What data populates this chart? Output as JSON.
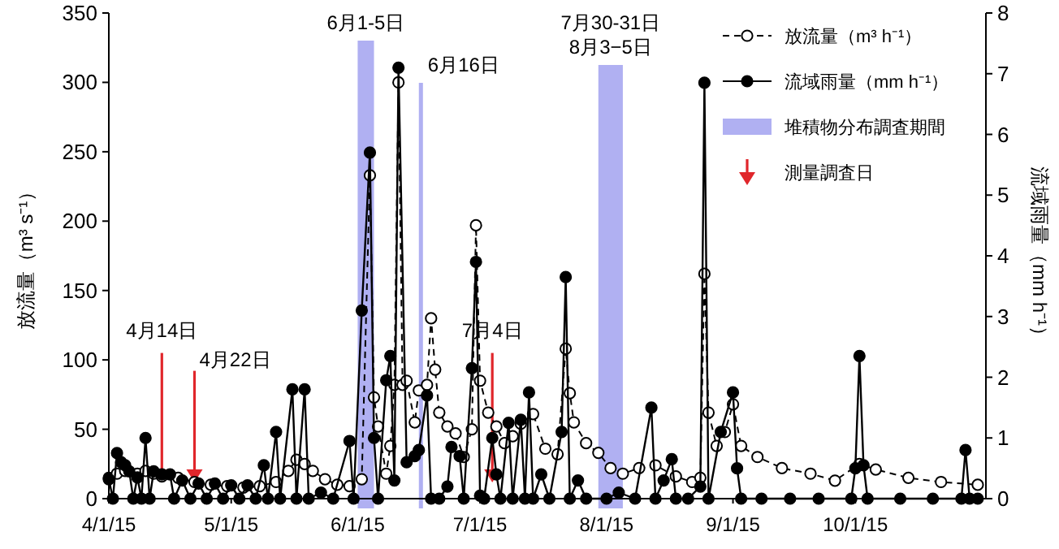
{
  "chart_data": {
    "type": "line",
    "ylabel": "放流量（m³ s⁻¹）",
    "y2label": "流域雨量（mm h⁻¹）",
    "xlim": [
      "2015-04-01",
      "2015-11-02"
    ],
    "xticks": [
      {
        "value": "2015-04-01",
        "label": "4/1/15"
      },
      {
        "value": "2015-05-01",
        "label": "5/1/15"
      },
      {
        "value": "2015-06-01",
        "label": "6/1/15"
      },
      {
        "value": "2015-07-01",
        "label": "7/1/15"
      },
      {
        "value": "2015-08-01",
        "label": "8/1/15"
      },
      {
        "value": "2015-09-01",
        "label": "9/1/15"
      },
      {
        "value": "2015-10-01",
        "label": "10/1/15"
      }
    ],
    "ylim": [
      0,
      350
    ],
    "yticks": [
      0,
      50,
      100,
      150,
      200,
      250,
      300,
      350
    ],
    "y2lim": [
      0,
      8
    ],
    "y2ticks": [
      0,
      1,
      2,
      3,
      4,
      5,
      6,
      7,
      8
    ],
    "marker": "circle",
    "legend": "top right",
    "series": [
      {
        "name": "放流量（m³ h⁻¹）",
        "color": "#000000",
        "line_style": "dashed",
        "x": [
          "2015-04-01",
          "2015-04-03",
          "2015-04-05",
          "2015-04-08",
          "2015-04-10",
          "2015-04-12",
          "2015-04-14",
          "2015-04-18",
          "2015-04-22",
          "2015-04-26",
          "2015-04-30",
          "2015-05-04",
          "2015-05-08",
          "2015-05-12",
          "2015-05-15",
          "2015-05-17",
          "2015-05-19",
          "2015-05-21",
          "2015-05-24",
          "2015-05-27",
          "2015-05-30",
          "2015-06-02",
          "2015-06-04",
          "2015-06-05",
          "2015-06-06",
          "2015-06-08",
          "2015-06-09",
          "2015-06-10",
          "2015-06-11",
          "2015-06-12",
          "2015-06-13",
          "2015-06-15",
          "2015-06-16",
          "2015-06-18",
          "2015-06-19",
          "2015-06-20",
          "2015-06-21",
          "2015-06-23",
          "2015-06-25",
          "2015-06-27",
          "2015-06-29",
          "2015-06-30",
          "2015-07-01",
          "2015-07-03",
          "2015-07-05",
          "2015-07-07",
          "2015-07-09",
          "2015-07-11",
          "2015-07-14",
          "2015-07-17",
          "2015-07-20",
          "2015-07-22",
          "2015-07-23",
          "2015-07-24",
          "2015-07-27",
          "2015-07-30",
          "2015-08-02",
          "2015-08-05",
          "2015-08-09",
          "2015-08-13",
          "2015-08-18",
          "2015-08-22",
          "2015-08-24",
          "2015-08-25",
          "2015-08-26",
          "2015-08-28",
          "2015-08-30",
          "2015-09-01",
          "2015-09-03",
          "2015-09-07",
          "2015-09-13",
          "2015-09-20",
          "2015-09-26",
          "2015-10-02",
          "2015-10-06",
          "2015-10-14",
          "2015-10-22",
          "2015-10-31"
        ],
        "values": [
          15,
          18,
          20,
          18,
          20,
          18,
          16,
          15,
          12,
          10,
          9,
          8,
          9,
          12,
          20,
          28,
          25,
          20,
          14,
          10,
          9,
          14,
          233,
          73,
          52,
          18,
          38,
          82,
          300,
          82,
          85,
          55,
          78,
          82,
          130,
          93,
          62,
          52,
          47,
          30,
          50,
          197,
          85,
          62,
          52,
          40,
          45,
          54,
          61,
          36,
          32,
          108,
          76,
          55,
          40,
          33,
          22,
          18,
          22,
          24,
          16,
          12,
          15,
          162,
          62,
          38,
          48,
          68,
          38,
          30,
          22,
          18,
          13,
          25,
          21,
          15,
          12,
          10
        ]
      },
      {
        "name": "流域雨量（mm h⁻¹）",
        "color": "#000000",
        "line_style": "solid",
        "axis": "y2",
        "x": [
          "2015-04-01",
          "2015-04-02",
          "2015-04-03",
          "2015-04-04",
          "2015-04-05",
          "2015-04-06",
          "2015-04-07",
          "2015-04-08",
          "2015-04-09",
          "2015-04-10",
          "2015-04-11",
          "2015-04-12",
          "2015-04-14",
          "2015-04-16",
          "2015-04-17",
          "2015-04-19",
          "2015-04-21",
          "2015-04-23",
          "2015-04-25",
          "2015-04-27",
          "2015-04-29",
          "2015-05-01",
          "2015-05-03",
          "2015-05-05",
          "2015-05-07",
          "2015-05-09",
          "2015-05-10",
          "2015-05-12",
          "2015-05-13",
          "2015-05-16",
          "2015-05-17",
          "2015-05-19",
          "2015-05-20",
          "2015-05-23",
          "2015-05-26",
          "2015-05-30",
          "2015-05-31",
          "2015-06-02",
          "2015-06-04",
          "2015-06-05",
          "2015-06-06",
          "2015-06-08",
          "2015-06-09",
          "2015-06-10",
          "2015-06-11",
          "2015-06-13",
          "2015-06-15",
          "2015-06-16",
          "2015-06-18",
          "2015-06-19",
          "2015-06-21",
          "2015-06-23",
          "2015-06-24",
          "2015-06-26",
          "2015-06-27",
          "2015-06-29",
          "2015-06-30",
          "2015-07-01",
          "2015-07-02",
          "2015-07-04",
          "2015-07-05",
          "2015-07-06",
          "2015-07-08",
          "2015-07-09",
          "2015-07-11",
          "2015-07-12",
          "2015-07-13",
          "2015-07-14",
          "2015-07-16",
          "2015-07-18",
          "2015-07-21",
          "2015-07-22",
          "2015-07-23",
          "2015-07-25",
          "2015-07-27",
          "2015-08-01",
          "2015-08-04",
          "2015-08-08",
          "2015-08-12",
          "2015-08-13",
          "2015-08-15",
          "2015-08-17",
          "2015-08-18",
          "2015-08-21",
          "2015-08-24",
          "2015-08-25",
          "2015-08-26",
          "2015-08-29",
          "2015-09-01",
          "2015-09-02",
          "2015-09-03",
          "2015-09-08",
          "2015-09-15",
          "2015-09-22",
          "2015-09-30",
          "2015-10-01",
          "2015-10-02",
          "2015-10-03",
          "2015-10-04",
          "2015-10-12",
          "2015-10-20",
          "2015-10-27",
          "2015-10-28",
          "2015-10-29",
          "2015-10-31"
        ],
        "values": [
          0.32,
          0,
          0.75,
          0.6,
          0.55,
          0.45,
          0,
          0.35,
          0,
          1.0,
          0,
          0.45,
          0.4,
          0.4,
          0,
          0.3,
          0,
          0.25,
          0,
          0.25,
          0,
          0.22,
          0,
          0.22,
          0,
          0.55,
          0,
          1.1,
          0,
          1.8,
          0,
          1.8,
          0,
          0.1,
          0,
          0.95,
          0,
          3.1,
          5.7,
          1.0,
          0,
          1.95,
          2.35,
          0.3,
          7.1,
          0.6,
          0.7,
          0.8,
          1.7,
          0,
          0,
          0.2,
          0.85,
          0.7,
          0,
          2.15,
          3.9,
          0.05,
          0,
          1.0,
          0.4,
          0,
          1.25,
          0,
          1.3,
          0,
          1.75,
          0,
          0.4,
          0,
          1.1,
          3.65,
          0,
          0.3,
          0,
          0,
          0.1,
          0,
          1.5,
          0,
          0.3,
          0.65,
          0,
          0,
          0.2,
          6.85,
          0,
          1.1,
          1.75,
          0.5,
          0,
          0,
          0,
          0,
          0,
          0.5,
          2.35,
          0.55,
          0,
          0,
          0,
          0,
          0.8,
          0,
          0
        ]
      }
    ],
    "bands": [
      {
        "axis": "x",
        "from": "2015-06-01",
        "to": "2015-06-05",
        "label": "6月1-5日",
        "color": "#b0b0f2"
      },
      {
        "axis": "x",
        "from": "2015-06-16",
        "to": "2015-06-17",
        "label": "6月16日",
        "color": "#b0b0f2"
      },
      {
        "axis": "x",
        "from": "2015-07-30",
        "to": "2015-08-05",
        "label": "7月30-31日\n8月3−5日",
        "color": "#b0b0f2"
      }
    ],
    "ref_lines": [
      {
        "axis": "x",
        "value": "2015-04-14",
        "label": "4月14日",
        "color": "#e0262b"
      },
      {
        "axis": "x",
        "value": "2015-04-22",
        "label": "4月22日",
        "color": "#e0262b"
      },
      {
        "axis": "x",
        "value": "2015-07-04",
        "label": "7月4日",
        "color": "#e0262b"
      }
    ],
    "annotations": [
      "堆積物分布調査期間",
      "測量調査日"
    ]
  }
}
